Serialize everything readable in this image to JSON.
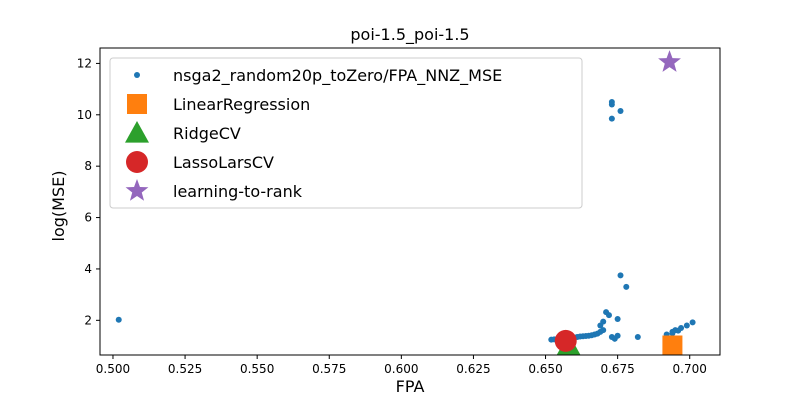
{
  "chart_data": {
    "type": "scatter",
    "title": "poi-1.5_poi-1.5",
    "xlabel": "FPA",
    "ylabel": "log(MSE)",
    "xlim": [
      0.4955,
      0.7105
    ],
    "ylim": [
      0.65,
      12.6
    ],
    "xticks": [
      0.5,
      0.525,
      0.55,
      0.575,
      0.6,
      0.625,
      0.65,
      0.675,
      0.7
    ],
    "xtick_labels": [
      "0.500",
      "0.525",
      "0.550",
      "0.575",
      "0.600",
      "0.625",
      "0.650",
      "0.675",
      "0.700"
    ],
    "yticks": [
      2,
      4,
      6,
      8,
      10,
      12
    ],
    "ytick_labels": [
      "2",
      "4",
      "6",
      "8",
      "10",
      "12"
    ],
    "legend_position": "top-left",
    "grid": false,
    "series": [
      {
        "name": "nsga2_random20p_toZero/FPA_NNZ_MSE",
        "marker": "dot",
        "color": "#1f77b4",
        "points": [
          [
            0.502,
            2.02
          ],
          [
            0.652,
            1.25
          ],
          [
            0.653,
            1.26
          ],
          [
            0.654,
            1.27
          ],
          [
            0.655,
            1.28
          ],
          [
            0.656,
            1.28
          ],
          [
            0.657,
            1.29
          ],
          [
            0.658,
            1.3
          ],
          [
            0.659,
            1.31
          ],
          [
            0.66,
            1.33
          ],
          [
            0.661,
            1.35
          ],
          [
            0.662,
            1.37
          ],
          [
            0.663,
            1.38
          ],
          [
            0.664,
            1.39
          ],
          [
            0.665,
            1.4
          ],
          [
            0.666,
            1.42
          ],
          [
            0.667,
            1.45
          ],
          [
            0.668,
            1.48
          ],
          [
            0.669,
            1.55
          ],
          [
            0.67,
            1.62
          ],
          [
            0.669,
            1.8
          ],
          [
            0.67,
            1.95
          ],
          [
            0.671,
            2.32
          ],
          [
            0.672,
            2.2
          ],
          [
            0.673,
            9.85
          ],
          [
            0.673,
            10.4
          ],
          [
            0.673,
            10.5
          ],
          [
            0.676,
            10.15
          ],
          [
            0.675,
            1.4
          ],
          [
            0.673,
            1.35
          ],
          [
            0.674,
            1.28
          ],
          [
            0.675,
            2.05
          ],
          [
            0.676,
            3.75
          ],
          [
            0.678,
            3.3
          ],
          [
            0.682,
            1.35
          ],
          [
            0.692,
            1.45
          ],
          [
            0.694,
            1.55
          ],
          [
            0.695,
            1.62
          ],
          [
            0.697,
            1.7
          ],
          [
            0.699,
            1.8
          ],
          [
            0.701,
            1.92
          ],
          [
            0.693,
            1.25
          ],
          [
            0.694,
            1.5
          ],
          [
            0.696,
            1.6
          ]
        ]
      },
      {
        "name": "LinearRegression",
        "marker": "square",
        "color": "#ff7f0e",
        "points": [
          [
            0.694,
            1.02
          ]
        ]
      },
      {
        "name": "RidgeCV",
        "marker": "triangle",
        "color": "#2ca02c",
        "points": [
          [
            0.658,
            1.02
          ]
        ]
      },
      {
        "name": "LassoLarsCV",
        "marker": "circle",
        "color": "#d62728",
        "points": [
          [
            0.657,
            1.2
          ]
        ]
      },
      {
        "name": "learning-to-rank",
        "marker": "star",
        "color": "#9467bd",
        "points": [
          [
            0.693,
            12.05
          ]
        ]
      }
    ]
  }
}
